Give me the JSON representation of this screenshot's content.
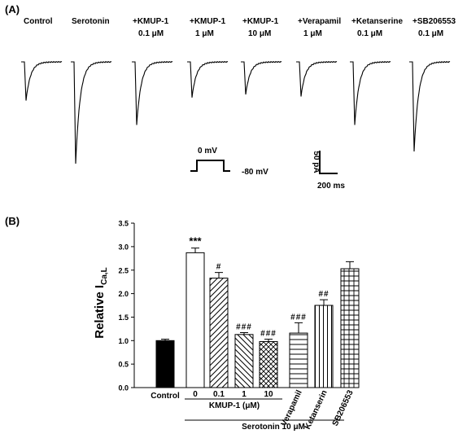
{
  "panel_a": {
    "label": "(A)",
    "traces": [
      {
        "label_lines": [
          "Control"
        ],
        "peak": 0.38
      },
      {
        "label_lines": [
          "Serotonin"
        ],
        "peak": 1.0
      },
      {
        "label_lines": [
          "+KMUP-1",
          "0.1 μM"
        ],
        "peak": 0.62
      },
      {
        "label_lines": [
          "+KMUP-1",
          "1 μM"
        ],
        "peak": 0.35
      },
      {
        "label_lines": [
          "+KMUP-1",
          "10 μM"
        ],
        "peak": 0.32
      },
      {
        "label_lines": [
          "+Verapamil",
          "1 μM"
        ],
        "peak": 0.34
      },
      {
        "label_lines": [
          "+Ketanserine",
          "0.1 μM"
        ],
        "peak": 0.62
      },
      {
        "label_lines": [
          "+SB206553",
          "0.1 μM"
        ],
        "peak": 0.88
      }
    ],
    "protocol": {
      "hold_label": "-80 mV",
      "step_label": "0 mV"
    },
    "scale_bar": {
      "current_label": "50 pA",
      "time_label": "200 ms"
    }
  },
  "chart_data": {
    "type": "bar",
    "panel_label": "(B)",
    "ylabel_main": "Relative I",
    "ylabel_sub": "Ca,L",
    "ylim": [
      0,
      3.5
    ],
    "yticks": [
      "0.0",
      "0.5",
      "1.0",
      "1.5",
      "2.0",
      "2.5",
      "3.0",
      "3.5"
    ],
    "categories": [
      "Control",
      "0",
      "0.1",
      "1",
      "10",
      "Verapamil",
      "Ketanserin",
      "SB206553"
    ],
    "values": [
      1.0,
      2.87,
      2.33,
      1.13,
      0.98,
      1.16,
      1.75,
      2.53
    ],
    "errors": [
      0.03,
      0.1,
      0.12,
      0.04,
      0.05,
      0.22,
      0.12,
      0.15
    ],
    "annotations": [
      "",
      "***",
      "#",
      "###",
      "###",
      "###",
      "##",
      ""
    ],
    "patterns": [
      "solid-black",
      "white",
      "diag-right",
      "diag-left",
      "crosshatch",
      "horizontal",
      "vertical",
      "grid"
    ],
    "group_label_kmup": "KMUP-1 (μM)",
    "group_label_serotonin": "Serotonin 10 μM"
  }
}
